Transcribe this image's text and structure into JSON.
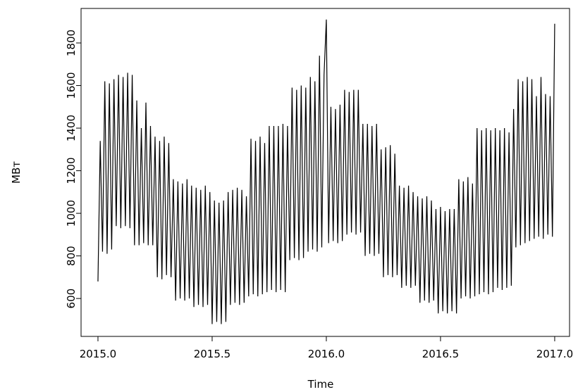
{
  "chart_data": {
    "type": "line",
    "xlabel": "Time",
    "ylabel": "МВт",
    "xlim": [
      2014.926,
      2017.065
    ],
    "ylim": [
      422,
      1962
    ],
    "xticks": [
      {
        "value": 2015,
        "label": "2015.0"
      },
      {
        "value": 2015.5,
        "label": "2015.5"
      },
      {
        "value": 2016,
        "label": "2016.0"
      },
      {
        "value": 2016.5,
        "label": "2016.5"
      },
      {
        "value": 2017,
        "label": "2017.0"
      }
    ],
    "yticks": [
      600,
      800,
      1000,
      1200,
      1400,
      1600,
      1800
    ],
    "grid": false,
    "x": [
      2015,
      2015.01,
      2015.02,
      2015.03,
      2015.04,
      2015.05,
      2015.06,
      2015.07,
      2015.08,
      2015.09,
      2015.1,
      2015.11,
      2015.12,
      2015.13,
      2015.14,
      2015.15,
      2015.16,
      2015.17,
      2015.18,
      2015.19,
      2015.2,
      2015.21,
      2015.22,
      2015.23,
      2015.24,
      2015.25,
      2015.26,
      2015.27,
      2015.28,
      2015.29,
      2015.3,
      2015.31,
      2015.32,
      2015.33,
      2015.34,
      2015.35,
      2015.36,
      2015.37,
      2015.38,
      2015.39,
      2015.4,
      2015.41,
      2015.42,
      2015.43,
      2015.44,
      2015.45,
      2015.46,
      2015.47,
      2015.48,
      2015.49,
      2015.5,
      2015.51,
      2015.52,
      2015.53,
      2015.54,
      2015.55,
      2015.56,
      2015.57,
      2015.58,
      2015.59,
      2015.6,
      2015.61,
      2015.62,
      2015.63,
      2015.64,
      2015.65,
      2015.66,
      2015.67,
      2015.68,
      2015.69,
      2015.7,
      2015.71,
      2015.72,
      2015.73,
      2015.74,
      2015.75,
      2015.76,
      2015.77,
      2015.78,
      2015.79,
      2015.8,
      2015.81,
      2015.82,
      2015.83,
      2015.84,
      2015.85,
      2015.86,
      2015.87,
      2015.88,
      2015.89,
      2015.9,
      2015.91,
      2015.92,
      2015.93,
      2015.94,
      2015.95,
      2015.96,
      2015.97,
      2015.98,
      2015.99,
      2016,
      2016.01,
      2016.02,
      2016.03,
      2016.04,
      2016.05,
      2016.06,
      2016.07,
      2016.08,
      2016.09,
      2016.1,
      2016.11,
      2016.12,
      2016.13,
      2016.14,
      2016.15,
      2016.16,
      2016.17,
      2016.18,
      2016.19,
      2016.2,
      2016.21,
      2016.22,
      2016.23,
      2016.24,
      2016.25,
      2016.26,
      2016.27,
      2016.28,
      2016.29,
      2016.3,
      2016.31,
      2016.32,
      2016.33,
      2016.34,
      2016.35,
      2016.36,
      2016.37,
      2016.38,
      2016.39,
      2016.4,
      2016.41,
      2016.42,
      2016.43,
      2016.44,
      2016.45,
      2016.46,
      2016.47,
      2016.48,
      2016.49,
      2016.5,
      2016.51,
      2016.52,
      2016.53,
      2016.54,
      2016.55,
      2016.56,
      2016.57,
      2016.58,
      2016.59,
      2016.6,
      2016.61,
      2016.62,
      2016.63,
      2016.64,
      2016.65,
      2016.66,
      2016.67,
      2016.68,
      2016.69,
      2016.7,
      2016.71,
      2016.72,
      2016.73,
      2016.74,
      2016.75,
      2016.76,
      2016.77,
      2016.78,
      2016.79,
      2016.8,
      2016.81,
      2016.82,
      2016.83,
      2016.84,
      2016.85,
      2016.86,
      2016.87,
      2016.88,
      2016.89,
      2016.9,
      2016.91,
      2016.92,
      2016.93,
      2016.94,
      2016.95,
      2016.96,
      2016.97,
      2016.98,
      2016.99,
      2017
    ],
    "series": [
      {
        "color": "#000000",
        "values": [
          680,
          1340,
          820,
          1620,
          810,
          1610,
          830,
          1630,
          940,
          1650,
          930,
          1640,
          940,
          1660,
          930,
          1650,
          850,
          1530,
          850,
          1400,
          860,
          1520,
          850,
          1410,
          850,
          1360,
          700,
          1340,
          690,
          1360,
          710,
          1330,
          700,
          1160,
          590,
          1150,
          600,
          1140,
          590,
          1160,
          600,
          1130,
          560,
          1120,
          570,
          1110,
          560,
          1130,
          570,
          1100,
          480,
          1060,
          490,
          1050,
          480,
          1060,
          490,
          1100,
          570,
          1110,
          580,
          1120,
          570,
          1110,
          580,
          1080,
          610,
          1350,
          620,
          1340,
          610,
          1360,
          620,
          1330,
          630,
          1410,
          640,
          1410,
          630,
          1410,
          640,
          1420,
          630,
          1410,
          780,
          1590,
          790,
          1580,
          780,
          1600,
          790,
          1590,
          820,
          1640,
          830,
          1620,
          820,
          1740,
          840,
          1650,
          1910,
          860,
          1500,
          870,
          1490,
          860,
          1510,
          870,
          1580,
          900,
          1570,
          910,
          1580,
          900,
          1580,
          910,
          1420,
          800,
          1420,
          810,
          1410,
          800,
          1420,
          810,
          1300,
          700,
          1310,
          710,
          1320,
          700,
          1280,
          710,
          1130,
          650,
          1120,
          660,
          1130,
          650,
          1100,
          660,
          1080,
          580,
          1070,
          590,
          1080,
          580,
          1060,
          590,
          1020,
          530,
          1030,
          540,
          1010,
          530,
          1020,
          540,
          1020,
          530,
          1160,
          600,
          1150,
          610,
          1170,
          600,
          1140,
          610,
          1400,
          620,
          1390,
          630,
          1400,
          620,
          1390,
          630,
          1400,
          650,
          1390,
          640,
          1400,
          650,
          1380,
          660,
          1490,
          840,
          1630,
          850,
          1620,
          860,
          1640,
          870,
          1630,
          880,
          1550,
          890,
          1640,
          880,
          1560,
          900,
          1550,
          890,
          1890
        ]
      }
    ]
  }
}
